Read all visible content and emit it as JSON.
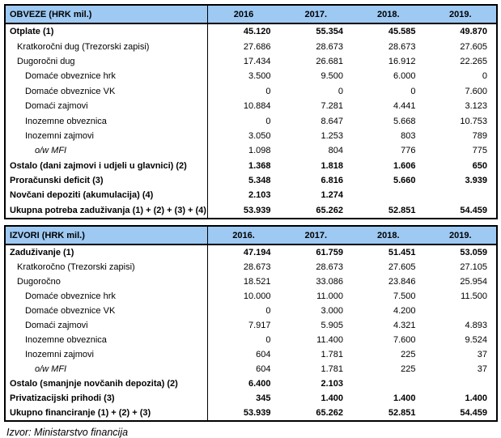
{
  "tables": [
    {
      "title": "OBVEZE (HRK mil.)",
      "years": [
        "2016",
        "2017.",
        "2018.",
        "2019."
      ],
      "rows": [
        {
          "label": "Otplate (1)",
          "indent": 0,
          "bold": true,
          "italic": false,
          "values": [
            "45.120",
            "55.354",
            "45.585",
            "49.870"
          ]
        },
        {
          "label": "Kratkoročni dug (Trezorski zapisi)",
          "indent": 1,
          "bold": false,
          "italic": false,
          "values": [
            "27.686",
            "28.673",
            "28.673",
            "27.605"
          ]
        },
        {
          "label": "Dugoročni dug",
          "indent": 1,
          "bold": false,
          "italic": false,
          "values": [
            "17.434",
            "26.681",
            "16.912",
            "22.265"
          ]
        },
        {
          "label": "Domaće obveznice hrk",
          "indent": 2,
          "bold": false,
          "italic": false,
          "values": [
            "3.500",
            "9.500",
            "6.000",
            "0"
          ]
        },
        {
          "label": "Domaće obveznice VK",
          "indent": 2,
          "bold": false,
          "italic": false,
          "values": [
            "0",
            "0",
            "0",
            "7.600"
          ]
        },
        {
          "label": "Domaći zajmovi",
          "indent": 2,
          "bold": false,
          "italic": false,
          "values": [
            "10.884",
            "7.281",
            "4.441",
            "3.123"
          ]
        },
        {
          "label": "Inozemne obveznica",
          "indent": 2,
          "bold": false,
          "italic": false,
          "values": [
            "0",
            "8.647",
            "5.668",
            "10.753"
          ]
        },
        {
          "label": "Inozemni zajmovi",
          "indent": 2,
          "bold": false,
          "italic": false,
          "values": [
            "3.050",
            "1.253",
            "803",
            "789"
          ]
        },
        {
          "label": "o/w MFI",
          "indent": 3,
          "bold": false,
          "italic": true,
          "values": [
            "1.098",
            "804",
            "776",
            "775"
          ]
        },
        {
          "label": "Ostalo (dani zajmovi i udjeli u glavnici) (2)",
          "indent": 0,
          "bold": true,
          "italic": false,
          "values": [
            "1.368",
            "1.818",
            "1.606",
            "650"
          ]
        },
        {
          "label": "Proračunski deficit (3)",
          "indent": 0,
          "bold": true,
          "italic": false,
          "values": [
            "5.348",
            "6.816",
            "5.660",
            "3.939"
          ]
        },
        {
          "label": "Novčani depoziti (akumulacija)  (4)",
          "indent": 0,
          "bold": true,
          "italic": false,
          "values": [
            "2.103",
            "1.274",
            "",
            ""
          ]
        },
        {
          "label": "Ukupna potreba zaduživanja (1) + (2) + (3) + (4)",
          "indent": 0,
          "bold": true,
          "italic": false,
          "values": [
            "53.939",
            "65.262",
            "52.851",
            "54.459"
          ]
        }
      ]
    },
    {
      "title": "IZVORI (HRK mil.)",
      "years": [
        "2016.",
        "2017.",
        "2018.",
        "2019."
      ],
      "rows": [
        {
          "label": "Zaduživanje (1)",
          "indent": 0,
          "bold": true,
          "italic": false,
          "values": [
            "47.194",
            "61.759",
            "51.451",
            "53.059"
          ]
        },
        {
          "label": "Kratkoročno (Trezorski zapisi)",
          "indent": 1,
          "bold": false,
          "italic": false,
          "values": [
            "28.673",
            "28.673",
            "27.605",
            "27.105"
          ]
        },
        {
          "label": "Dugoročno",
          "indent": 1,
          "bold": false,
          "italic": false,
          "values": [
            "18.521",
            "33.086",
            "23.846",
            "25.954"
          ]
        },
        {
          "label": "Domaće obveznice hrk",
          "indent": 2,
          "bold": false,
          "italic": false,
          "values": [
            "10.000",
            "11.000",
            "7.500",
            "11.500"
          ]
        },
        {
          "label": "Domaće obveznice VK",
          "indent": 2,
          "bold": false,
          "italic": false,
          "values": [
            "0",
            "3.000",
            "4.200",
            ""
          ]
        },
        {
          "label": "Domaći zajmovi",
          "indent": 2,
          "bold": false,
          "italic": false,
          "values": [
            "7.917",
            "5.905",
            "4.321",
            "4.893"
          ]
        },
        {
          "label": "Inozemne obveznica",
          "indent": 2,
          "bold": false,
          "italic": false,
          "values": [
            "0",
            "11.400",
            "7.600",
            "9.524"
          ]
        },
        {
          "label": "Inozemni zajmovi",
          "indent": 2,
          "bold": false,
          "italic": false,
          "values": [
            "604",
            "1.781",
            "225",
            "37"
          ]
        },
        {
          "label": "o/w MFI",
          "indent": 3,
          "bold": false,
          "italic": true,
          "values": [
            "604",
            "1.781",
            "225",
            "37"
          ]
        },
        {
          "label": "Ostalo (smanjnje novčanih depozita) (2)",
          "indent": 0,
          "bold": true,
          "italic": false,
          "values": [
            "6.400",
            "2.103",
            "",
            ""
          ]
        },
        {
          "label": "Privatizacijski prihodi (3)",
          "indent": 0,
          "bold": true,
          "italic": false,
          "values": [
            "345",
            "1.400",
            "1.400",
            "1.400"
          ]
        },
        {
          "label": "Ukupno financiranje (1) + (2) + (3)",
          "indent": 0,
          "bold": true,
          "italic": false,
          "values": [
            "53.939",
            "65.262",
            "52.851",
            "54.459"
          ]
        }
      ]
    }
  ],
  "footer": {
    "source_note": "Izvor: Ministarstvo financija"
  },
  "colors": {
    "header_bg": "#9dc9f3",
    "border": "#000000",
    "text": "#000000"
  }
}
